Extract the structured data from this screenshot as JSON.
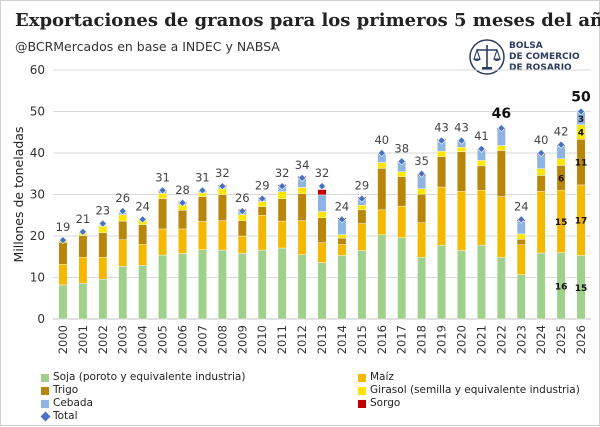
{
  "title": "Exportaciones de granos para los primeros 5 meses del año",
  "subtitle": "@BCRMercados en base a INDEC y NABSA",
  "logo": {
    "line1": "BOLSA",
    "line2": "DE COMERCIO",
    "line3": "DE ROSARIO",
    "icon": "scales-of-justice-icon"
  },
  "colors": {
    "soja": "#9fd08c",
    "maiz": "#f5b800",
    "trigo": "#b8860b",
    "girasol": "#ffe600",
    "cebada": "#8db4e2",
    "sorgo": "#c00000",
    "total": "#4472c4",
    "grid": "#d9d9d9",
    "axis_text": "#333333"
  },
  "legend": [
    {
      "key": "soja",
      "label": "Soja (poroto y equivalente industria)"
    },
    {
      "key": "maiz",
      "label": "Maíz"
    },
    {
      "key": "trigo",
      "label": "Trigo"
    },
    {
      "key": "girasol",
      "label": "Girasol (semilla y equivalente industria)"
    },
    {
      "key": "cebada",
      "label": "Cebada"
    },
    {
      "key": "sorgo",
      "label": "Sorgo"
    },
    {
      "key": "total",
      "label": "Total"
    }
  ],
  "chart_data": {
    "type": "bar",
    "stacked": true,
    "ylabel": "Millones de toneladas",
    "xlabel": "",
    "ylim": [
      0,
      60
    ],
    "yticks": [
      0,
      10,
      20,
      30,
      40,
      50,
      60
    ],
    "grid": true,
    "legend_position": "bottom",
    "categories": [
      "2000",
      "2001",
      "2002",
      "2003",
      "2004",
      "2005",
      "2006",
      "2007",
      "2008",
      "2009",
      "2010",
      "2011",
      "2012",
      "2013",
      "2014",
      "2015",
      "2016",
      "2017",
      "2018",
      "2019",
      "2020",
      "2021",
      "2022",
      "2023",
      "2024",
      "2025",
      "2026"
    ],
    "series": [
      {
        "name": "Soja (poroto y equivalente industria)",
        "key": "soja",
        "values": [
          8.2,
          8.6,
          9.6,
          12.7,
          12.9,
          15.4,
          15.8,
          16.7,
          16.6,
          15.8,
          16.6,
          17.1,
          15.5,
          13.6,
          15.3,
          16.5,
          20.3,
          19.6,
          14.9,
          17.8,
          16.5,
          17.8,
          14.9,
          10.7,
          15.9,
          16.0,
          15.3
        ]
      },
      {
        "name": "Maíz",
        "key": "maiz",
        "values": [
          5.0,
          6.3,
          5.3,
          6.4,
          5.1,
          6.3,
          5.9,
          6.8,
          7.1,
          4.2,
          8.4,
          6.5,
          8.2,
          4.8,
          2.7,
          6.5,
          6.0,
          7.6,
          8.3,
          14.0,
          14.3,
          13.2,
          14.6,
          7.2,
          14.9,
          15.0,
          17.0
        ]
      },
      {
        "name": "Trigo",
        "key": "trigo",
        "values": [
          5.3,
          5.2,
          5.9,
          4.5,
          4.7,
          7.3,
          4.5,
          6.0,
          6.3,
          3.7,
          2.1,
          5.4,
          6.5,
          6.0,
          1.5,
          3.3,
          10.0,
          7.1,
          6.9,
          7.3,
          9.5,
          5.9,
          11.1,
          1.3,
          3.8,
          6.0,
          11.0
        ]
      },
      {
        "name": "Girasol (semilla y equivalente industria)",
        "key": "girasol",
        "values": [
          0.6,
          0.6,
          1.6,
          1.5,
          1.3,
          1.3,
          1.3,
          1.0,
          1.4,
          1.4,
          1.2,
          1.7,
          1.5,
          1.5,
          0.8,
          1.1,
          1.4,
          1.2,
          1.3,
          1.3,
          1.1,
          1.3,
          1.2,
          1.3,
          1.6,
          1.6,
          3.5
        ]
      },
      {
        "name": "Cebada",
        "key": "cebada",
        "values": [
          0.0,
          0.1,
          0.2,
          0.5,
          0.1,
          0.4,
          0.5,
          0.4,
          0.6,
          0.9,
          0.7,
          1.2,
          2.2,
          4.0,
          3.6,
          1.6,
          2.1,
          2.3,
          3.1,
          2.5,
          1.4,
          2.5,
          3.8,
          3.1,
          3.4,
          3.0,
          3.0
        ]
      },
      {
        "name": "Sorgo",
        "key": "sorgo",
        "values": [
          0.1,
          0.2,
          0.1,
          0.1,
          0.2,
          0.3,
          0.3,
          0.2,
          0.3,
          0.4,
          0.3,
          0.5,
          0.5,
          1.3,
          0.5,
          0.4,
          0.3,
          0.3,
          0.4,
          0.4,
          0.3,
          0.2,
          0.5,
          0.4,
          0.4,
          0.3,
          0.3
        ]
      }
    ],
    "totals": [
      19,
      21,
      23,
      26,
      24,
      31,
      28,
      31,
      32,
      26,
      29,
      32,
      34,
      32,
      24,
      29,
      40,
      38,
      35,
      43,
      43,
      41,
      46,
      24,
      40,
      42,
      50
    ],
    "total_labels": [
      "19",
      "21",
      "23",
      "26",
      "24",
      "31",
      "28",
      "31",
      "32",
      "26",
      "29",
      "32",
      "34",
      "32",
      "24",
      "29",
      "40",
      "38",
      "35",
      "43",
      "43",
      "41",
      "46",
      "24",
      "40",
      "42",
      "50"
    ],
    "highlight_total_indices": [
      22,
      26
    ],
    "segment_labels": [
      {
        "category": "2025",
        "key": "soja",
        "text": "16"
      },
      {
        "category": "2025",
        "key": "maiz",
        "text": "15"
      },
      {
        "category": "2025",
        "key": "trigo",
        "text": "6"
      },
      {
        "category": "2026",
        "key": "soja",
        "text": "15"
      },
      {
        "category": "2026",
        "key": "maiz",
        "text": "17"
      },
      {
        "category": "2026",
        "key": "trigo",
        "text": "11"
      },
      {
        "category": "2026",
        "key": "girasol",
        "text": "4"
      },
      {
        "category": "2026",
        "key": "cebada",
        "text": "3"
      }
    ]
  }
}
